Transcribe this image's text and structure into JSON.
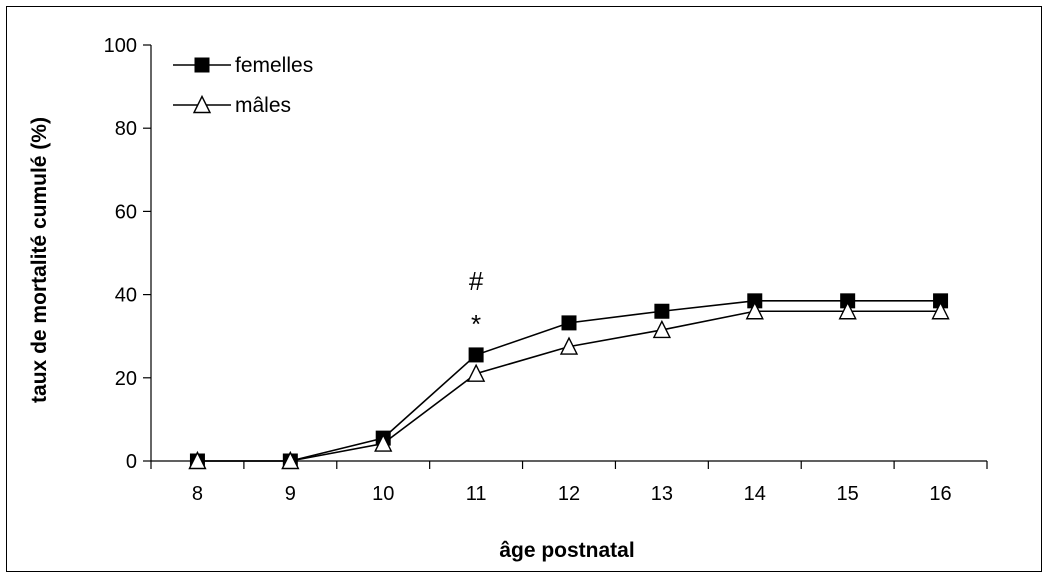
{
  "chart_data": {
    "type": "line",
    "title": "",
    "xlabel": "âge postnatal",
    "ylabel": "taux de mortalité cumulé (%)",
    "x": [
      8,
      9,
      10,
      11,
      12,
      13,
      14,
      15,
      16
    ],
    "categories": [
      "8",
      "9",
      "10",
      "11",
      "12",
      "13",
      "14",
      "15",
      "16"
    ],
    "ylim": [
      0,
      100
    ],
    "yticks": [
      0,
      20,
      40,
      60,
      80,
      100
    ],
    "ytick_labels": [
      "0",
      "20",
      "40",
      "60",
      "80",
      "100"
    ],
    "grid": false,
    "legend_position": "top-left",
    "series": [
      {
        "name": "femelles",
        "marker": "filled-square",
        "color": "#000000",
        "values": [
          0,
          0,
          5.5,
          25.5,
          33.2,
          36,
          38.5,
          38.5,
          38.5
        ]
      },
      {
        "name": "mâles",
        "marker": "open-triangle",
        "color": "#000000",
        "values": [
          0,
          0,
          4.2,
          21,
          27.5,
          31.5,
          36,
          36,
          36
        ]
      }
    ],
    "annotations": [
      {
        "text": "#",
        "x": 11
      },
      {
        "text": "*",
        "x": 11
      }
    ]
  }
}
